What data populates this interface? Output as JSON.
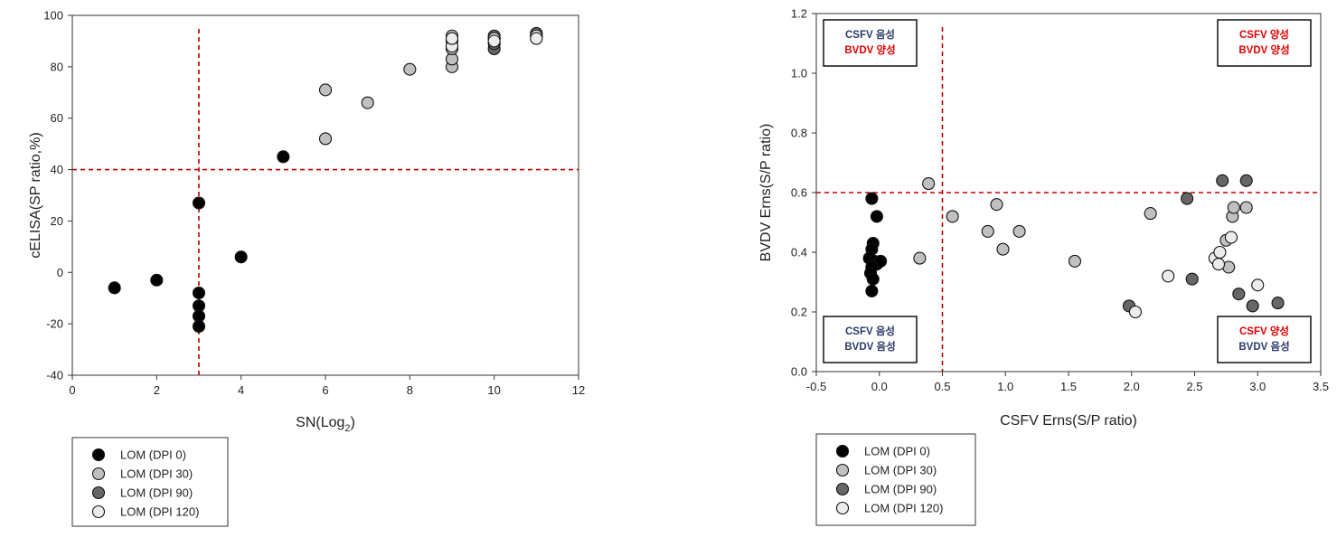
{
  "chart_data": [
    {
      "type": "scatter",
      "title": "",
      "xlabel": "SN(Log",
      "xlabel_sub": "2",
      "xlabel_end": ")",
      "ylabel": "cELISA(SP ratio,%)",
      "xlim": [
        0,
        12
      ],
      "ylim": [
        -40,
        100
      ],
      "xticks": [
        "0",
        "2",
        "4",
        "6",
        "8",
        "10",
        "12"
      ],
      "yticks": [
        "-40",
        "-20",
        "0",
        "20",
        "40",
        "60",
        "80",
        "100"
      ],
      "grid": false,
      "cutoffs": {
        "x": 3,
        "y": 40
      },
      "legend_position": "below-left",
      "series": [
        {
          "name": "LOM (DPI 0)",
          "color": "#000000",
          "points": [
            [
              1,
              -6
            ],
            [
              2,
              -3
            ],
            [
              3,
              27
            ],
            [
              3,
              -8
            ],
            [
              3,
              -13
            ],
            [
              3,
              -17
            ],
            [
              3,
              -21
            ],
            [
              4,
              6
            ],
            [
              5,
              45
            ]
          ]
        },
        {
          "name": "LOM (DPI 30)",
          "color": "#c0c0c0",
          "points": [
            [
              6,
              71
            ],
            [
              6,
              52
            ],
            [
              7,
              66
            ],
            [
              8,
              79
            ],
            [
              9,
              80
            ],
            [
              9,
              83
            ],
            [
              9,
              87
            ],
            [
              9,
              90
            ],
            [
              9,
              92
            ]
          ]
        },
        {
          "name": "LOM (DPI 90)",
          "color": "#666666",
          "points": [
            [
              10,
              87
            ],
            [
              10,
              89
            ],
            [
              10,
              91
            ],
            [
              10,
              92
            ],
            [
              11,
              92
            ],
            [
              11,
              93
            ]
          ]
        },
        {
          "name": "LOM (DPI 120)",
          "color": "#ececec",
          "points": [
            [
              9,
              88
            ],
            [
              9,
              91
            ],
            [
              10,
              91
            ],
            [
              10,
              90
            ],
            [
              11,
              92
            ],
            [
              11,
              91
            ]
          ]
        }
      ]
    },
    {
      "type": "scatter",
      "title": "",
      "xlabel": "CSFV Erns(S/P ratio)",
      "ylabel": "BVDV Erns(S/P ratio)",
      "xlim": [
        -0.5,
        3.5
      ],
      "ylim": [
        0,
        1.2
      ],
      "xticks": [
        "-0.5",
        "0.0",
        "0.5",
        "1.0",
        "1.5",
        "2.0",
        "2.5",
        "3.0",
        "3.5"
      ],
      "yticks": [
        "0.0",
        "0.2",
        "0.4",
        "0.6",
        "0.8",
        "1.0",
        "1.2"
      ],
      "grid": false,
      "cutoffs": {
        "x": 0.5,
        "y": 0.6
      },
      "legend_position": "below-left",
      "quadrant_labels": [
        {
          "pos": "top-left",
          "line1": "CSFV 음성",
          "line1_color": "#2a3a6a",
          "line2": "BVDV 양성",
          "line2_color": "#e00000"
        },
        {
          "pos": "top-right",
          "line1": "CSFV 양성",
          "line1_color": "#e00000",
          "line2": "BVDV 양성",
          "line2_color": "#e00000"
        },
        {
          "pos": "bottom-left",
          "line1": "CSFV 음성",
          "line1_color": "#2a3a6a",
          "line2": "BVDV 음성",
          "line2_color": "#2a3a6a"
        },
        {
          "pos": "bottom-right",
          "line1": "CSFV 양성",
          "line1_color": "#e00000",
          "line2": "BVDV 음성",
          "line2_color": "#2a3a6a"
        }
      ],
      "series": [
        {
          "name": "LOM (DPI 0)",
          "color": "#000000",
          "points": [
            [
              -0.06,
              0.58
            ],
            [
              -0.02,
              0.52
            ],
            [
              -0.05,
              0.43
            ],
            [
              -0.06,
              0.41
            ],
            [
              -0.08,
              0.38
            ],
            [
              -0.04,
              0.37
            ],
            [
              -0.02,
              0.36
            ],
            [
              0.01,
              0.37
            ],
            [
              -0.06,
              0.35
            ],
            [
              -0.07,
              0.33
            ],
            [
              -0.05,
              0.31
            ],
            [
              -0.06,
              0.27
            ]
          ]
        },
        {
          "name": "LOM (DPI 30)",
          "color": "#c0c0c0",
          "points": [
            [
              0.32,
              0.38
            ],
            [
              0.39,
              0.63
            ],
            [
              0.58,
              0.52
            ],
            [
              0.86,
              0.47
            ],
            [
              0.93,
              0.56
            ],
            [
              0.98,
              0.41
            ],
            [
              1.11,
              0.47
            ],
            [
              1.55,
              0.37
            ],
            [
              2.15,
              0.53
            ],
            [
              2.75,
              0.44
            ],
            [
              2.77,
              0.35
            ],
            [
              2.8,
              0.52
            ],
            [
              2.81,
              0.55
            ],
            [
              2.91,
              0.55
            ]
          ]
        },
        {
          "name": "LOM (DPI 90)",
          "color": "#666666",
          "points": [
            [
              1.98,
              0.22
            ],
            [
              2.44,
              0.58
            ],
            [
              2.48,
              0.31
            ],
            [
              2.72,
              0.64
            ],
            [
              2.85,
              0.26
            ],
            [
              2.91,
              0.64
            ],
            [
              2.96,
              0.22
            ],
            [
              3.16,
              0.23
            ]
          ]
        },
        {
          "name": "LOM (DPI 120)",
          "color": "#ececec",
          "points": [
            [
              2.03,
              0.2
            ],
            [
              2.29,
              0.32
            ],
            [
              2.66,
              0.38
            ],
            [
              2.69,
              0.36
            ],
            [
              2.7,
              0.4
            ],
            [
              2.79,
              0.45
            ],
            [
              3.0,
              0.29
            ]
          ]
        }
      ]
    }
  ]
}
